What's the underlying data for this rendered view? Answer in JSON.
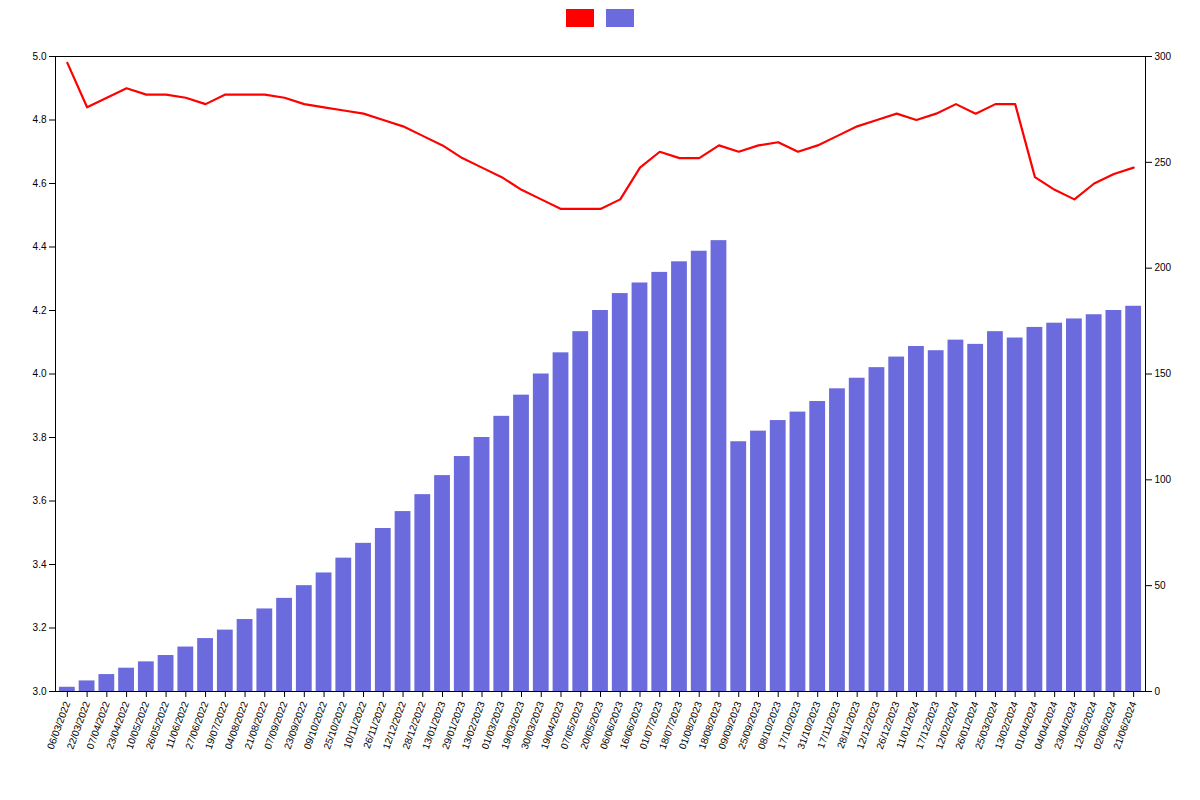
{
  "chart_data": {
    "type": "bar",
    "categories": [
      "06/03/2022",
      "22/03/2022",
      "07/04/2022",
      "23/04/2022",
      "10/05/2022",
      "26/05/2022",
      "11/06/2022",
      "27/06/2022",
      "19/07/2022",
      "04/08/2022",
      "21/08/2022",
      "07/09/2022",
      "23/09/2022",
      "09/10/2022",
      "25/10/2022",
      "10/11/2022",
      "26/11/2022",
      "12/12/2022",
      "28/12/2022",
      "13/01/2023",
      "29/01/2023",
      "13/02/2023",
      "01/03/2023",
      "19/03/2023",
      "30/03/2023",
      "19/04/2023",
      "07/05/2023",
      "20/05/2023",
      "06/06/2023",
      "16/06/2023",
      "01/07/2023",
      "18/07/2023",
      "01/08/2023",
      "18/08/2023",
      "09/09/2023",
      "25/09/2023",
      "08/10/2023",
      "17/10/2023",
      "31/10/2023",
      "17/11/2023",
      "28/11/2023",
      "12/12/2023",
      "26/12/2023",
      "11/01/2024",
      "17/12/2023",
      "12/02/2024",
      "26/01/2024",
      "25/03/2024",
      "13/02/2024",
      "01/04/2024",
      "04/04/2024",
      "23/04/2024",
      "12/05/2024",
      "02/06/2024",
      "21/06/2024"
    ],
    "series": [
      {
        "type": "line",
        "color": "#ff0000",
        "values": [
          4.98,
          4.84,
          4.87,
          4.9,
          4.88,
          4.88,
          4.87,
          4.85,
          4.88,
          4.88,
          4.88,
          4.87,
          4.85,
          4.84,
          4.83,
          4.82,
          4.8,
          4.78,
          4.75,
          4.72,
          4.68,
          4.65,
          4.62,
          4.58,
          4.55,
          4.52,
          4.52,
          4.52,
          4.55,
          4.65,
          4.7,
          4.68,
          4.68,
          4.72,
          4.7,
          4.72,
          4.73,
          4.7,
          4.72,
          4.75,
          4.78,
          4.8,
          4.82,
          4.8,
          4.82,
          4.85,
          4.82,
          4.85,
          4.85,
          4.62,
          4.58,
          4.55,
          4.6,
          4.63,
          4.65
        ]
      },
      {
        "type": "bar",
        "color": "#6b6bdd",
        "axis": "y2",
        "values": [
          2,
          5,
          8,
          11,
          14,
          17,
          21,
          25,
          29,
          34,
          39,
          44,
          50,
          56,
          63,
          70,
          77,
          85,
          93,
          102,
          111,
          120,
          130,
          140,
          150,
          160,
          170,
          180,
          188,
          193,
          198,
          203,
          208,
          213,
          118,
          123,
          128,
          132,
          137,
          143,
          148,
          153,
          158,
          163,
          161,
          166,
          164,
          170,
          167,
          172,
          174,
          176,
          178,
          180,
          182
        ]
      }
    ],
    "ylim": [
      3.0,
      5.0
    ],
    "yticks": [
      {
        "value": 3.0,
        "label": "3.0"
      },
      3.2,
      3.4,
      3.6,
      3.8,
      {
        "value": 4.0,
        "label": "4.0"
      },
      4.2,
      4.4,
      4.6,
      4.8,
      {
        "value": 5.0,
        "label": "5.0"
      }
    ],
    "y2lim": [
      0,
      300
    ],
    "y2ticks": [
      0,
      50,
      100,
      150,
      200,
      250,
      300
    ],
    "grid": false,
    "legend": "top"
  }
}
